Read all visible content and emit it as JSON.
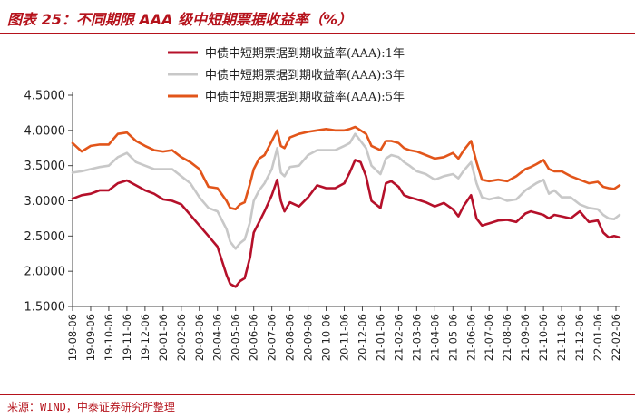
{
  "header": {
    "title": "图表 25：不同期限 AAA 级中短期票据收益率（%）"
  },
  "footer": {
    "source": "来源：WIND，中泰证券研究所整理"
  },
  "chart_data": {
    "type": "line",
    "title": "图表 25：不同期限 AAA 级中短期票据收益率（%）",
    "xlabel": "",
    "ylabel": "",
    "ylim": [
      1.5,
      4.5
    ],
    "yticks": [
      "1.5000",
      "2.0000",
      "2.5000",
      "3.0000",
      "3.5000",
      "4.0000",
      "4.5000"
    ],
    "x_tick_labels": [
      "19-08-06",
      "19-09-06",
      "19-10-06",
      "19-11-06",
      "19-12-06",
      "20-01-06",
      "20-02-06",
      "20-03-06",
      "20-04-06",
      "20-05-06",
      "20-06-06",
      "20-07-06",
      "20-08-06",
      "20-09-06",
      "20-10-06",
      "20-11-06",
      "20-12-06",
      "21-01-06",
      "21-02-06",
      "21-03-06",
      "21-04-06",
      "21-05-06",
      "21-06-06",
      "21-07-06",
      "21-08-06",
      "21-09-06",
      "21-10-06",
      "21-11-06",
      "21-12-06",
      "22-01-06",
      "22-02-06"
    ],
    "legend_position": "top-right",
    "x_months": [
      0.0,
      0.5,
      1.0,
      1.5,
      2.0,
      2.5,
      3.0,
      3.5,
      4.0,
      4.5,
      5.0,
      5.5,
      6.0,
      6.5,
      7.0,
      7.5,
      8.0,
      8.5,
      8.7,
      9.0,
      9.25,
      9.5,
      9.8,
      10.0,
      10.3,
      10.6,
      11.0,
      11.3,
      11.5,
      11.7,
      12.0,
      12.5,
      13.0,
      13.5,
      14.0,
      14.5,
      15.0,
      15.3,
      15.6,
      15.9,
      16.2,
      16.5,
      17.0,
      17.3,
      17.6,
      18.0,
      18.3,
      18.6,
      19.0,
      19.5,
      20.0,
      20.5,
      21.0,
      21.3,
      21.6,
      22.0,
      22.3,
      22.6,
      23.0,
      23.5,
      24.0,
      24.5,
      25.0,
      25.3,
      25.6,
      26.0,
      26.3,
      26.6,
      27.0,
      27.5,
      28.0,
      28.5,
      29.0,
      29.3,
      29.6,
      29.9,
      30.2
    ],
    "series": [
      {
        "name": "中债中短期票据到期收益率(AAA):1年",
        "color": "#b5102a",
        "values": [
          3.03,
          3.08,
          3.1,
          3.15,
          3.15,
          3.25,
          3.29,
          3.22,
          3.15,
          3.1,
          3.02,
          3.0,
          2.95,
          2.8,
          2.65,
          2.5,
          2.35,
          1.95,
          1.82,
          1.78,
          1.86,
          1.9,
          2.2,
          2.55,
          2.7,
          2.85,
          3.08,
          3.3,
          3.0,
          2.85,
          2.98,
          2.92,
          3.05,
          3.22,
          3.18,
          3.18,
          3.25,
          3.4,
          3.58,
          3.55,
          3.35,
          3.0,
          2.9,
          3.25,
          3.28,
          3.2,
          3.08,
          3.05,
          3.02,
          2.98,
          2.92,
          2.97,
          2.88,
          2.78,
          2.93,
          3.08,
          2.75,
          2.65,
          2.68,
          2.72,
          2.73,
          2.7,
          2.82,
          2.85,
          2.83,
          2.8,
          2.75,
          2.8,
          2.78,
          2.75,
          2.85,
          2.7,
          2.72,
          2.55,
          2.48,
          2.5,
          2.48
        ]
      },
      {
        "name": "中债中短期票据到期收益率(AAA):3年",
        "color": "#c8c8c8",
        "values": [
          3.4,
          3.42,
          3.45,
          3.48,
          3.5,
          3.62,
          3.68,
          3.55,
          3.5,
          3.45,
          3.45,
          3.45,
          3.35,
          3.25,
          3.05,
          2.9,
          2.85,
          2.6,
          2.42,
          2.32,
          2.4,
          2.45,
          2.7,
          3.0,
          3.15,
          3.25,
          3.45,
          3.75,
          3.4,
          3.35,
          3.48,
          3.5,
          3.65,
          3.72,
          3.72,
          3.72,
          3.78,
          3.82,
          3.95,
          3.85,
          3.75,
          3.5,
          3.38,
          3.6,
          3.65,
          3.62,
          3.55,
          3.5,
          3.42,
          3.38,
          3.3,
          3.35,
          3.38,
          3.32,
          3.43,
          3.55,
          3.25,
          3.05,
          3.02,
          3.05,
          3.0,
          3.02,
          3.15,
          3.2,
          3.25,
          3.3,
          3.1,
          3.15,
          3.05,
          3.05,
          2.95,
          2.9,
          2.88,
          2.8,
          2.75,
          2.74,
          2.8
        ]
      },
      {
        "name": "中债中短期票据到期收益率(AAA):5年",
        "color": "#e2551a",
        "values": [
          3.82,
          3.7,
          3.78,
          3.8,
          3.8,
          3.95,
          3.97,
          3.85,
          3.78,
          3.72,
          3.7,
          3.72,
          3.62,
          3.55,
          3.45,
          3.2,
          3.18,
          3.0,
          2.9,
          2.88,
          2.95,
          2.98,
          3.25,
          3.45,
          3.6,
          3.65,
          3.85,
          4.0,
          3.78,
          3.75,
          3.9,
          3.95,
          3.98,
          4.0,
          4.02,
          4.0,
          4.0,
          4.02,
          4.05,
          4.0,
          3.95,
          3.78,
          3.72,
          3.85,
          3.85,
          3.82,
          3.75,
          3.72,
          3.7,
          3.65,
          3.6,
          3.62,
          3.68,
          3.6,
          3.72,
          3.85,
          3.55,
          3.3,
          3.28,
          3.3,
          3.28,
          3.35,
          3.45,
          3.48,
          3.52,
          3.58,
          3.45,
          3.42,
          3.42,
          3.35,
          3.3,
          3.25,
          3.27,
          3.2,
          3.18,
          3.17,
          3.22
        ]
      }
    ]
  }
}
